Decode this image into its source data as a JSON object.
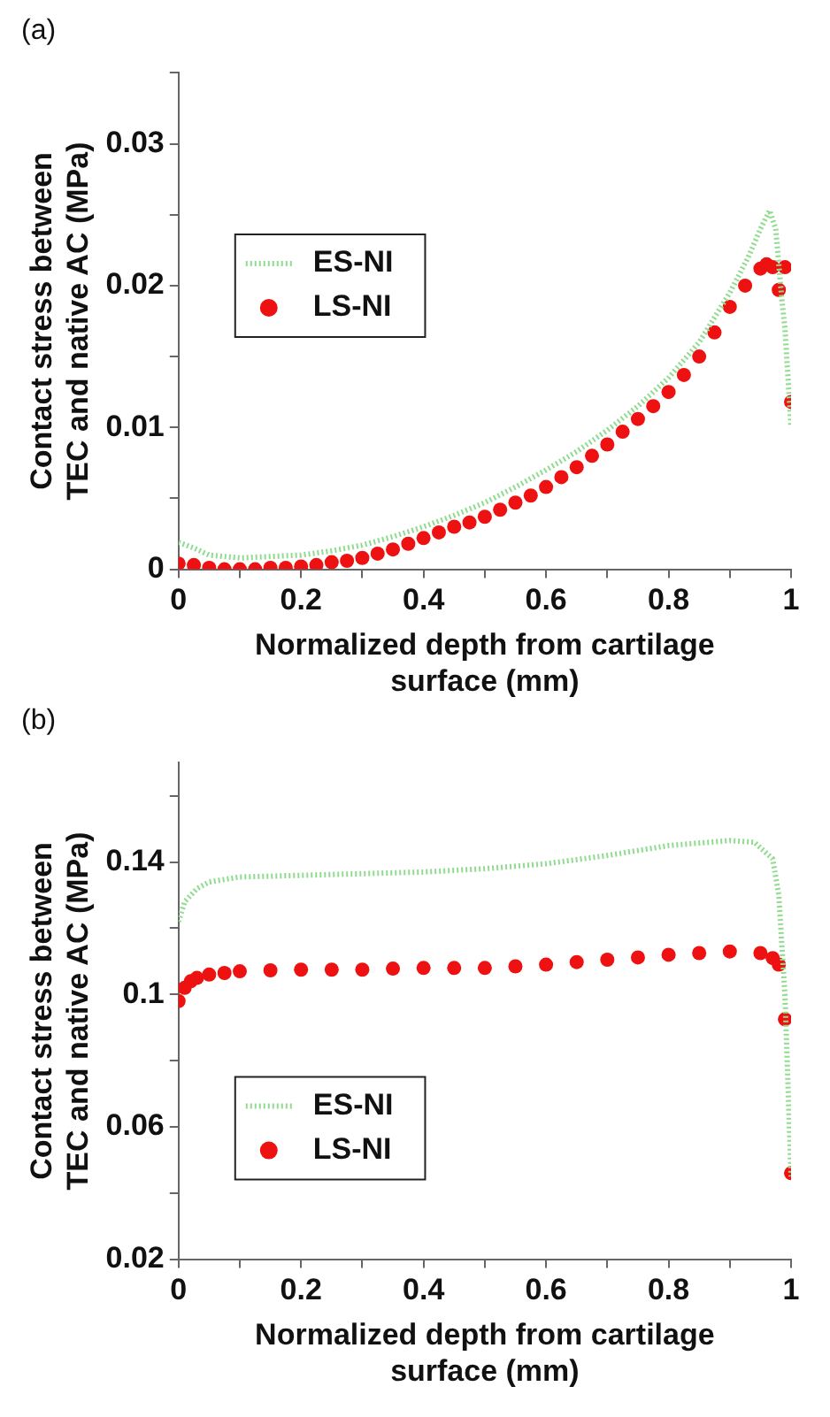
{
  "chart_data": [
    {
      "type": "line",
      "title": "(a)",
      "xlabel": "Normalized depth from cartilage surface (mm)",
      "ylabel": "Contact stress between TEC and native AC (MPa)",
      "xlim": [
        0,
        1
      ],
      "xticks": [
        0,
        {
          "value": 0.1,
          "label": null
        },
        0.2,
        {
          "value": 0.3,
          "label": null
        },
        0.4,
        {
          "value": 0.5,
          "label": null
        },
        0.6,
        {
          "value": 0.7,
          "label": null
        },
        0.8,
        {
          "value": 0.9,
          "label": null
        },
        1
      ],
      "ylim": [
        0,
        0.035
      ],
      "yticks": [
        0,
        {
          "value": 0.005,
          "label": null
        },
        0.01,
        {
          "value": 0.015,
          "label": null
        },
        0.02,
        {
          "value": 0.025,
          "label": null
        },
        0.03,
        {
          "value": 0.035,
          "label": null
        }
      ],
      "grid": false,
      "legend": "left",
      "series": [
        {
          "name": "ES-NI",
          "type": "line",
          "line_style": "dotted",
          "marker": "none",
          "color": "#8fdc8f",
          "x": [
            0,
            0.025,
            0.05,
            0.1,
            0.15,
            0.2,
            0.25,
            0.3,
            0.35,
            0.4,
            0.45,
            0.5,
            0.55,
            0.6,
            0.65,
            0.7,
            0.75,
            0.8,
            0.85,
            0.9,
            0.93,
            0.95,
            0.965,
            0.975,
            0.985,
            0.99,
            1.0
          ],
          "values": [
            0.0019,
            0.0015,
            0.001,
            0.0008,
            0.0009,
            0.001,
            0.0013,
            0.0017,
            0.0023,
            0.003,
            0.0038,
            0.0047,
            0.0058,
            0.007,
            0.0083,
            0.0098,
            0.0115,
            0.0135,
            0.016,
            0.0195,
            0.022,
            0.024,
            0.0253,
            0.024,
            0.019,
            0.017,
            0.01
          ]
        },
        {
          "name": "LS-NI",
          "type": "scatter",
          "marker": "circle",
          "color": "#ee1111",
          "x": [
            0,
            0.025,
            0.05,
            0.075,
            0.1,
            0.125,
            0.15,
            0.175,
            0.2,
            0.225,
            0.25,
            0.275,
            0.3,
            0.325,
            0.35,
            0.375,
            0.4,
            0.425,
            0.45,
            0.475,
            0.5,
            0.525,
            0.55,
            0.575,
            0.6,
            0.625,
            0.65,
            0.675,
            0.7,
            0.725,
            0.75,
            0.775,
            0.8,
            0.825,
            0.85,
            0.875,
            0.9,
            0.925,
            0.95,
            0.96,
            0.97,
            0.98,
            0.99,
            1.0
          ],
          "values": [
            0.0004,
            0.0003,
            0.0001,
            0,
            0,
            0,
            0.0001,
            0.0001,
            0.0002,
            0.0003,
            0.0005,
            0.0006,
            0.0008,
            0.0011,
            0.0014,
            0.0018,
            0.0022,
            0.0026,
            0.003,
            0.0033,
            0.0037,
            0.0042,
            0.0047,
            0.0052,
            0.0058,
            0.0065,
            0.0072,
            0.008,
            0.0088,
            0.0097,
            0.0106,
            0.0115,
            0.0125,
            0.0137,
            0.015,
            0.0167,
            0.0185,
            0.02,
            0.0212,
            0.0215,
            0.0213,
            0.0197,
            0.0213,
            0.0118
          ]
        }
      ]
    },
    {
      "type": "line",
      "title": "(b)",
      "xlabel": "Normalized depth from cartilage surface (mm)",
      "ylabel": "Contact stress between TEC and native AC (MPa)",
      "xlim": [
        0,
        1
      ],
      "xticks": [
        0,
        {
          "value": 0.1,
          "label": null
        },
        0.2,
        {
          "value": 0.3,
          "label": null
        },
        0.4,
        {
          "value": 0.5,
          "label": null
        },
        0.6,
        {
          "value": 0.7,
          "label": null
        },
        0.8,
        {
          "value": 0.9,
          "label": null
        },
        1
      ],
      "ylim": [
        0.02,
        0.17
      ],
      "yticks": [
        0.02,
        {
          "value": 0.04,
          "label": null
        },
        0.06,
        {
          "value": 0.08,
          "label": null
        },
        0.1,
        {
          "value": 0.12,
          "label": null
        },
        0.14,
        {
          "value": 0.16,
          "label": null
        }
      ],
      "grid": false,
      "legend": "bottom left",
      "series": [
        {
          "name": "ES-NI",
          "type": "line",
          "line_style": "dotted",
          "marker": "none",
          "color": "#8fdc8f",
          "x": [
            0,
            0.01,
            0.03,
            0.05,
            0.1,
            0.2,
            0.3,
            0.4,
            0.5,
            0.6,
            0.7,
            0.8,
            0.9,
            0.94,
            0.97,
            0.98,
            0.99,
            1.0
          ],
          "values": [
            0.122,
            0.128,
            0.132,
            0.134,
            0.1355,
            0.136,
            0.1365,
            0.137,
            0.138,
            0.1395,
            0.142,
            0.145,
            0.1465,
            0.146,
            0.141,
            0.13,
            0.1,
            0.045
          ]
        },
        {
          "name": "LS-NI",
          "type": "scatter",
          "marker": "circle",
          "color": "#ee1111",
          "x": [
            0,
            0.01,
            0.02,
            0.03,
            0.05,
            0.075,
            0.1,
            0.15,
            0.2,
            0.25,
            0.3,
            0.35,
            0.4,
            0.45,
            0.5,
            0.55,
            0.6,
            0.65,
            0.7,
            0.75,
            0.8,
            0.85,
            0.9,
            0.95,
            0.97,
            0.98,
            0.99,
            1.0
          ],
          "values": [
            0.098,
            0.102,
            0.104,
            0.105,
            0.106,
            0.1065,
            0.107,
            0.1073,
            0.1075,
            0.1075,
            0.1075,
            0.1078,
            0.108,
            0.108,
            0.108,
            0.1085,
            0.109,
            0.1098,
            0.1105,
            0.1112,
            0.112,
            0.1125,
            0.113,
            0.1125,
            0.111,
            0.109,
            0.0925,
            0.046
          ]
        }
      ]
    }
  ]
}
